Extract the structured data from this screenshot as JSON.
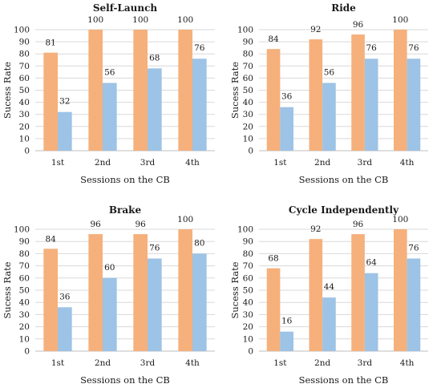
{
  "colors": {
    "series1": "#F5B07C",
    "series2": "#9DC3E6",
    "grid": "#D9D9D9",
    "axis": "#BFBFBF"
  },
  "chart_data": [
    {
      "type": "bar",
      "title": "Self-Launch",
      "xlabel": "Sessions on the CB",
      "ylabel": "Sucess Rate",
      "ylim": [
        0,
        100
      ],
      "yticks": [
        "0",
        "10",
        "20",
        "30",
        "40",
        "50",
        "60",
        "70",
        "80",
        "90",
        "100"
      ],
      "grid": true,
      "categories": [
        "1st",
        "2nd",
        "3rd",
        "4th"
      ],
      "series": [
        {
          "values": [
            81,
            100,
            100,
            100
          ]
        },
        {
          "values": [
            32,
            56,
            68,
            76
          ]
        }
      ]
    },
    {
      "type": "bar",
      "title": "Ride",
      "xlabel": "Sessions on the CB",
      "ylabel": "Sucess Rate",
      "ylim": [
        0,
        100
      ],
      "yticks": [
        "0",
        "10",
        "20",
        "30",
        "40",
        "50",
        "60",
        "70",
        "80",
        "90",
        "100"
      ],
      "grid": true,
      "categories": [
        "1st",
        "2nd",
        "3rd",
        "4th"
      ],
      "series": [
        {
          "values": [
            84,
            92,
            96,
            100
          ]
        },
        {
          "values": [
            36,
            56,
            76,
            76
          ]
        }
      ]
    },
    {
      "type": "bar",
      "title": "Brake",
      "xlabel": "Sessions on the CB",
      "ylabel": "Sucess Rate",
      "ylim": [
        0,
        100
      ],
      "yticks": [
        "0",
        "10",
        "20",
        "30",
        "40",
        "50",
        "60",
        "70",
        "80",
        "90",
        "100"
      ],
      "grid": true,
      "categories": [
        "1st",
        "2nd",
        "3rd",
        "4th"
      ],
      "series": [
        {
          "values": [
            84,
            96,
            96,
            100
          ]
        },
        {
          "values": [
            36,
            60,
            76,
            80
          ]
        }
      ]
    },
    {
      "type": "bar",
      "title": "Cycle Independently",
      "xlabel": "Sessions on the CB",
      "ylabel": "Sucess Rate",
      "ylim": [
        0,
        100
      ],
      "yticks": [
        "0",
        "10",
        "20",
        "30",
        "40",
        "50",
        "60",
        "70",
        "80",
        "90",
        "100"
      ],
      "grid": true,
      "categories": [
        "1st",
        "2nd",
        "3rd",
        "4th"
      ],
      "series": [
        {
          "values": [
            68,
            92,
            96,
            100
          ]
        },
        {
          "values": [
            16,
            44,
            64,
            76
          ]
        }
      ]
    }
  ]
}
